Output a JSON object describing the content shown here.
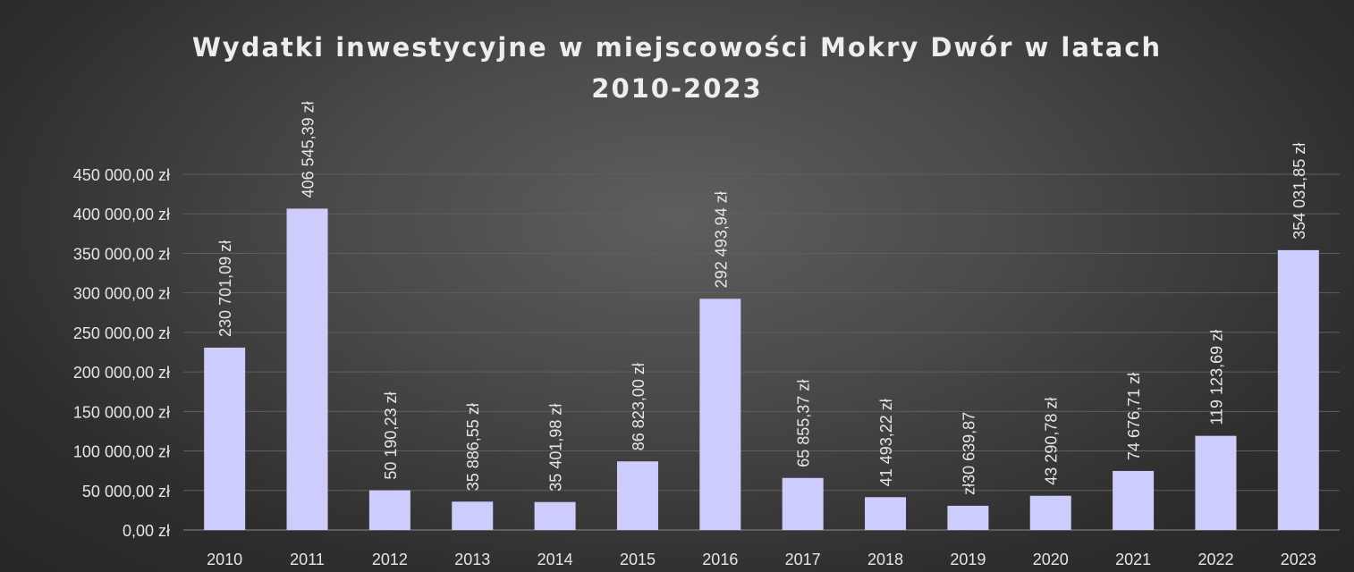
{
  "chart_data": {
    "type": "bar",
    "title_lines": [
      "Wydatki inwestycyjne w miejscowości Mokry Dwór w latach",
      "2010-2023"
    ],
    "categories": [
      "2010",
      "2011",
      "2012",
      "2013",
      "2014",
      "2015",
      "2016",
      "2017",
      "2018",
      "2019",
      "2020",
      "2021",
      "2022",
      "2023"
    ],
    "values": [
      230701.09,
      406545.39,
      50190.23,
      35886.55,
      35401.98,
      86823.0,
      292493.94,
      65855.37,
      41493.22,
      30639.87,
      43290.78,
      74676.71,
      119123.69,
      354031.85
    ],
    "data_labels": [
      "230 701,09 zł",
      "406 545,39 zł",
      "50 190,23 zł",
      "35 886,55 zł",
      "35 401,98 zł",
      "86 823,00 zł",
      "292 493,94 zł",
      "65 855,37 zł",
      "41 493,22 zł",
      "zł30 639,87",
      "43 290,78 zł",
      "74 676,71 zł",
      "119 123,69 zł",
      "354 031,85 zł"
    ],
    "yticks": [
      0,
      50000,
      100000,
      150000,
      200000,
      250000,
      300000,
      350000,
      400000,
      450000
    ],
    "ytick_labels": [
      "0,00 zł",
      "50 000,00 zł",
      "100 000,00 zł",
      "150 000,00 zł",
      "200 000,00 zł",
      "250 000,00 zł",
      "300 000,00 zł",
      "350 000,00 zł",
      "400 000,00 zł",
      "450 000,00 zł"
    ],
    "ylim": [
      0,
      450000
    ],
    "grid": true,
    "legend": "none",
    "bar_color": "#ccccff",
    "text_color": "#e6e6e6",
    "grid_color": "#5f5f5f"
  }
}
